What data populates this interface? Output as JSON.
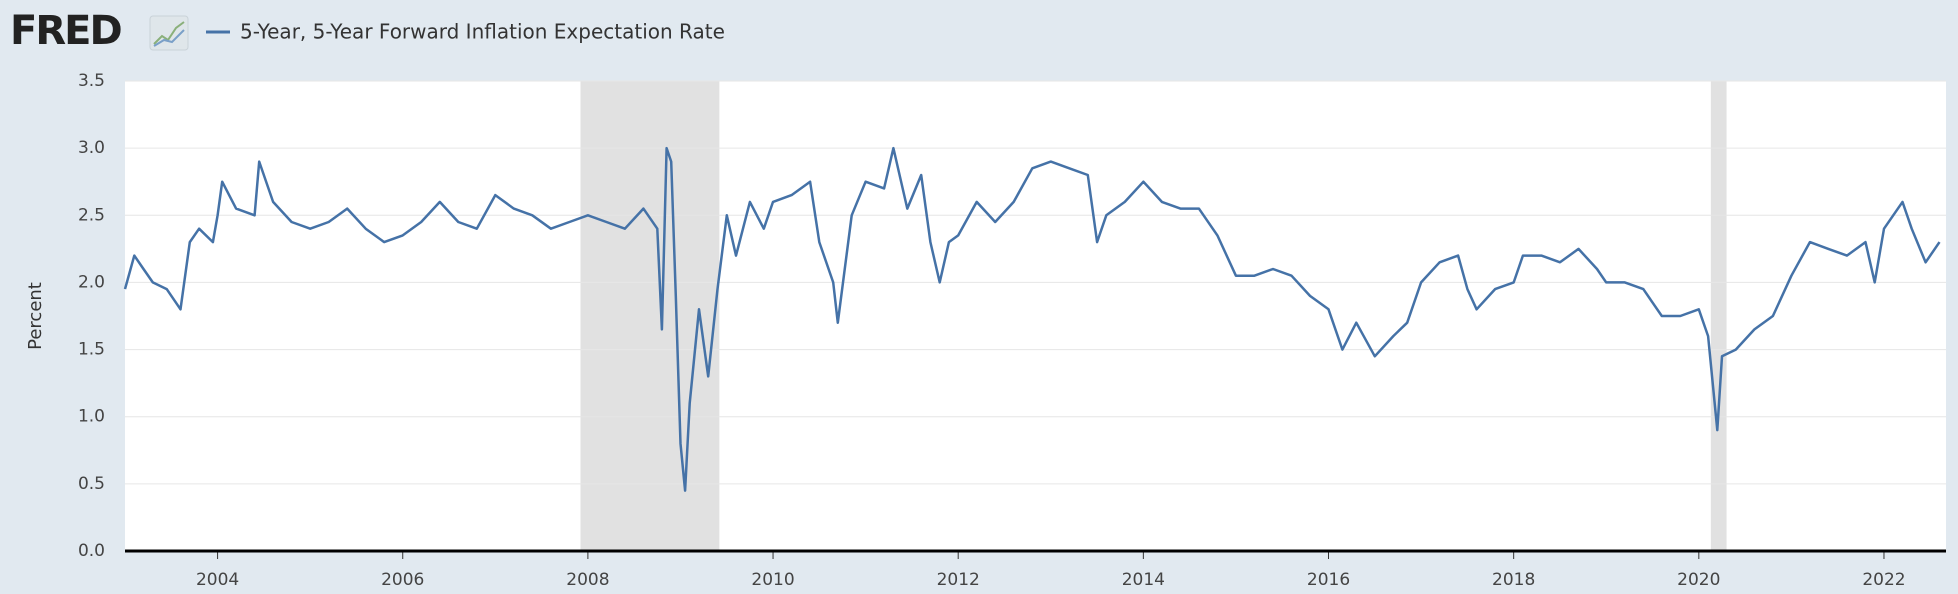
{
  "logo": "FRED",
  "chart_data": {
    "type": "line",
    "y_label": "Percent",
    "xlim": [
      2003.0,
      2022.67
    ],
    "xticks": [
      2004,
      2006,
      2008,
      2010,
      2012,
      2014,
      2016,
      2018,
      2020,
      2022
    ],
    "ylim": [
      0,
      3.5
    ],
    "yticks": [
      {
        "value": 0,
        "label": "0.0"
      },
      0.5,
      {
        "value": 1,
        "label": "1.0"
      },
      1.5,
      {
        "value": 2,
        "label": "2.0"
      },
      2.5,
      {
        "value": 3,
        "label": "3.0"
      },
      3.5
    ],
    "grid": true,
    "recessions": [
      [
        2007.92,
        2009.42
      ],
      [
        2020.13,
        2020.3
      ]
    ],
    "series": [
      {
        "name": "5-Year, 5-Year Forward Inflation Expectation Rate",
        "color": "#4572a7",
        "x": [
          2003.0,
          2003.1,
          2003.2,
          2003.3,
          2003.45,
          2003.6,
          2003.7,
          2003.8,
          2003.95,
          2004.0,
          2004.05,
          2004.2,
          2004.4,
          2004.45,
          2004.6,
          2004.8,
          2005.0,
          2005.2,
          2005.4,
          2005.6,
          2005.8,
          2006.0,
          2006.2,
          2006.4,
          2006.6,
          2006.8,
          2007.0,
          2007.2,
          2007.4,
          2007.6,
          2007.8,
          2008.0,
          2008.2,
          2008.4,
          2008.6,
          2008.75,
          2008.8,
          2008.85,
          2008.9,
          2008.95,
          2009.0,
          2009.05,
          2009.1,
          2009.2,
          2009.3,
          2009.4,
          2009.5,
          2009.6,
          2009.75,
          2009.9,
          2010.0,
          2010.2,
          2010.4,
          2010.5,
          2010.65,
          2010.7,
          2010.85,
          2011.0,
          2011.2,
          2011.3,
          2011.45,
          2011.6,
          2011.7,
          2011.8,
          2011.9,
          2012.0,
          2012.2,
          2012.4,
          2012.6,
          2012.8,
          2013.0,
          2013.2,
          2013.4,
          2013.5,
          2013.6,
          2013.8,
          2014.0,
          2014.2,
          2014.4,
          2014.6,
          2014.8,
          2015.0,
          2015.2,
          2015.4,
          2015.6,
          2015.8,
          2016.0,
          2016.15,
          2016.3,
          2016.5,
          2016.7,
          2016.85,
          2017.0,
          2017.2,
          2017.4,
          2017.5,
          2017.6,
          2017.8,
          2018.0,
          2018.1,
          2018.3,
          2018.5,
          2018.7,
          2018.9,
          2019.0,
          2019.2,
          2019.4,
          2019.6,
          2019.8,
          2020.0,
          2020.1,
          2020.2,
          2020.25,
          2020.4,
          2020.6,
          2020.8,
          2021.0,
          2021.2,
          2021.4,
          2021.6,
          2021.8,
          2021.9,
          2022.0,
          2022.2,
          2022.3,
          2022.45,
          2022.6
        ],
        "values": [
          1.95,
          2.2,
          2.1,
          2.0,
          1.95,
          1.8,
          2.3,
          2.4,
          2.3,
          2.5,
          2.75,
          2.55,
          2.5,
          2.9,
          2.6,
          2.45,
          2.4,
          2.45,
          2.55,
          2.4,
          2.3,
          2.35,
          2.45,
          2.6,
          2.45,
          2.4,
          2.65,
          2.55,
          2.5,
          2.4,
          2.45,
          2.5,
          2.45,
          2.4,
          2.55,
          2.4,
          1.65,
          3.0,
          2.9,
          1.9,
          0.8,
          0.45,
          1.1,
          1.8,
          1.3,
          1.95,
          2.5,
          2.2,
          2.6,
          2.4,
          2.6,
          2.65,
          2.75,
          2.3,
          2.0,
          1.7,
          2.5,
          2.75,
          2.7,
          3.0,
          2.55,
          2.8,
          2.3,
          2.0,
          2.3,
          2.35,
          2.6,
          2.45,
          2.6,
          2.85,
          2.9,
          2.85,
          2.8,
          2.3,
          2.5,
          2.6,
          2.75,
          2.6,
          2.55,
          2.55,
          2.35,
          2.05,
          2.05,
          2.1,
          2.05,
          1.9,
          1.8,
          1.5,
          1.7,
          1.45,
          1.6,
          1.7,
          2.0,
          2.15,
          2.2,
          1.95,
          1.8,
          1.95,
          2.0,
          2.2,
          2.2,
          2.15,
          2.25,
          2.1,
          2.0,
          2.0,
          1.95,
          1.75,
          1.75,
          1.8,
          1.6,
          0.9,
          1.45,
          1.5,
          1.65,
          1.75,
          2.05,
          2.3,
          2.25,
          2.2,
          2.3,
          2.0,
          2.4,
          2.6,
          2.4,
          2.15,
          2.3
        ]
      }
    ]
  }
}
